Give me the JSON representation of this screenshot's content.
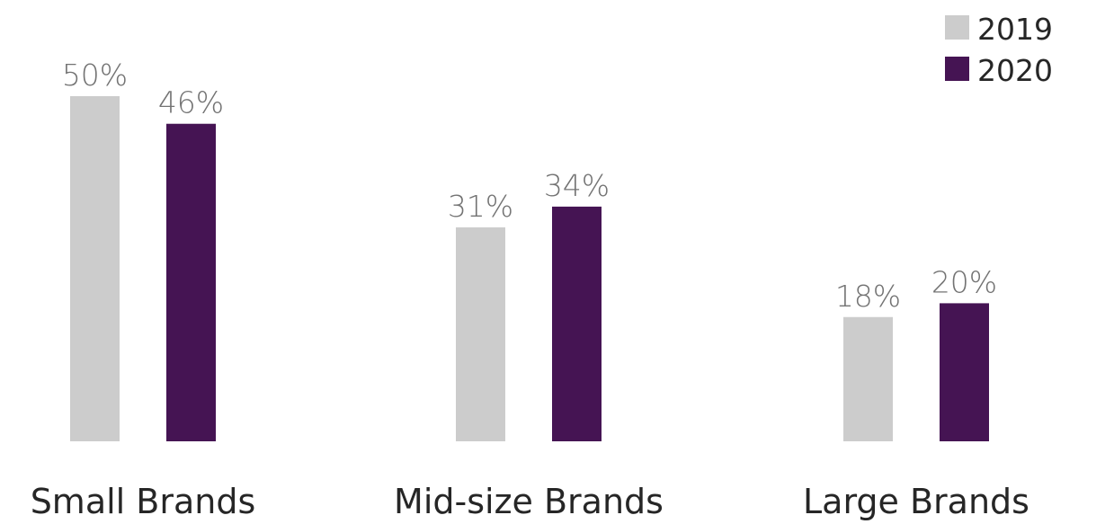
{
  "chart_data": {
    "type": "bar",
    "categories": [
      "Small Brands",
      "Mid-size Brands",
      "Large Brands"
    ],
    "series": [
      {
        "name": "2019",
        "values": [
          50,
          31,
          18
        ],
        "labels": [
          "50%",
          "31%",
          "18%"
        ],
        "color": "#cccccc"
      },
      {
        "name": "2020",
        "values": [
          46,
          34,
          20
        ],
        "labels": [
          "46%",
          "34%",
          "20%"
        ],
        "color": "#451453"
      }
    ],
    "title": "",
    "xlabel": "",
    "ylabel": "",
    "ylim": [
      0,
      50
    ],
    "grid": false,
    "legend_position": "top-right",
    "value_label_color": "#737373",
    "category_label_color": "#262626"
  }
}
